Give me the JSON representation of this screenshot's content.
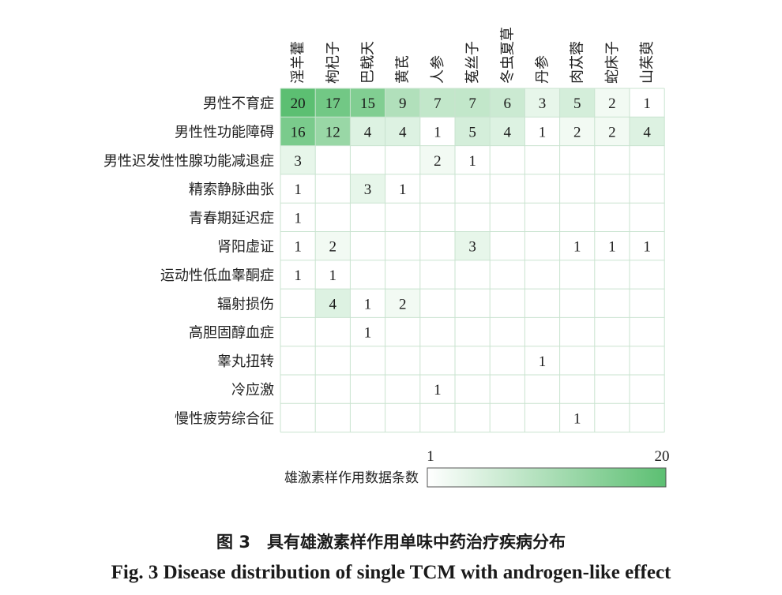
{
  "chart_data": {
    "type": "heatmap",
    "columns": [
      "淫羊藿",
      "枸杞子",
      "巴戟天",
      "黄芪",
      "人参",
      "菟丝子",
      "冬虫夏草",
      "丹参",
      "肉苁蓉",
      "蛇床子",
      "山茱萸"
    ],
    "rows": [
      "男性不育症",
      "男性性功能障碍",
      "男性迟发性性腺功能减退症",
      "精索静脉曲张",
      "青春期延迟症",
      "肾阳虚证",
      "运动性低血睾酮症",
      "辐射损伤",
      "高胆固醇血症",
      "睾丸扭转",
      "冷应激",
      "慢性疲劳综合征"
    ],
    "values": [
      [
        20,
        17,
        15,
        9,
        7,
        7,
        6,
        3,
        5,
        2,
        1
      ],
      [
        16,
        12,
        4,
        4,
        1,
        5,
        4,
        1,
        2,
        2,
        4
      ],
      [
        3,
        null,
        null,
        null,
        2,
        1,
        null,
        null,
        null,
        null,
        null
      ],
      [
        1,
        null,
        3,
        1,
        null,
        null,
        null,
        null,
        null,
        null,
        null
      ],
      [
        1,
        null,
        null,
        null,
        null,
        null,
        null,
        null,
        null,
        null,
        null
      ],
      [
        1,
        2,
        null,
        null,
        null,
        3,
        null,
        null,
        1,
        1,
        1
      ],
      [
        1,
        1,
        null,
        null,
        null,
        null,
        null,
        null,
        null,
        null,
        null
      ],
      [
        null,
        4,
        1,
        2,
        null,
        null,
        null,
        null,
        null,
        null,
        null
      ],
      [
        null,
        null,
        1,
        null,
        null,
        null,
        null,
        null,
        null,
        null,
        null
      ],
      [
        null,
        null,
        null,
        null,
        null,
        null,
        null,
        1,
        null,
        null,
        null
      ],
      [
        null,
        null,
        null,
        null,
        1,
        null,
        null,
        null,
        null,
        null,
        null
      ],
      [
        null,
        null,
        null,
        null,
        null,
        null,
        null,
        null,
        1,
        null,
        null
      ]
    ],
    "legend": {
      "title": "雄激素样作用数据条数",
      "min": 1,
      "max": 20,
      "min_label": "1",
      "max_label": "20"
    },
    "colors": {
      "low": "#ffffff",
      "high": "#5cbf72",
      "grid": "#c9e3cf"
    }
  },
  "caption_cn": "图 3　具有雄激素样作用单味中药治疗疾病分布",
  "caption_en": "Fig. 3   Disease distribution of single TCM with androgen-like effect"
}
